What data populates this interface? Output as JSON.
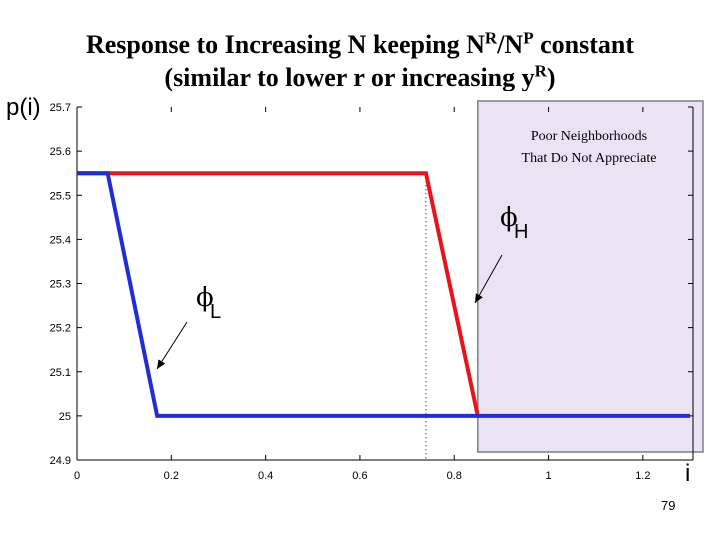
{
  "slide": {
    "title_line1": "Response to Increasing N keeping N",
    "title_line1_sup1": "R",
    "title_line1_mid": "/N",
    "title_line1_sup2": "P",
    "title_line1_end": " constant",
    "title_line2": "(similar to lower r or increasing y",
    "title_line2_sup": "R",
    "title_line2_end": ")",
    "page_number": "79"
  },
  "chart_data": {
    "type": "line",
    "xlabel": "i",
    "ylabel": "p(i)",
    "xlim": [
      0,
      1.3
    ],
    "ylim": [
      24.9,
      25.7
    ],
    "xticks": [
      "0",
      "0.2",
      "0.4",
      "0.6",
      "0.8",
      "1",
      "1.2"
    ],
    "yticks": [
      "24.9",
      "25",
      "25.1",
      "25.2",
      "25.3",
      "25.4",
      "25.5",
      "25.6",
      "25.7"
    ],
    "series": [
      {
        "name": "",
        "color": "#e8141c",
        "x": [
          0.0,
          0.065,
          0.74,
          0.85
        ],
        "y": [
          25.55,
          25.55,
          25.55,
          25.0
        ]
      },
      {
        "name": "",
        "color": "#1f2ed6",
        "x": [
          0.0,
          0.065,
          0.17,
          1.3
        ],
        "y": [
          25.55,
          25.55,
          25.0,
          25.0
        ]
      }
    ],
    "shaded_region": {
      "x_from": 0.85,
      "x_to": 1.3,
      "color": "#ebe3f3",
      "label_line1": "Poor Neighborhoods",
      "label_line2": "That  Do Not Appreciate"
    },
    "vertical_dotted_line_x": 0.74,
    "annotations": [
      {
        "label": "ϕ",
        "subscript": "L"
      },
      {
        "label": "ϕ",
        "subscript": "H"
      }
    ]
  }
}
